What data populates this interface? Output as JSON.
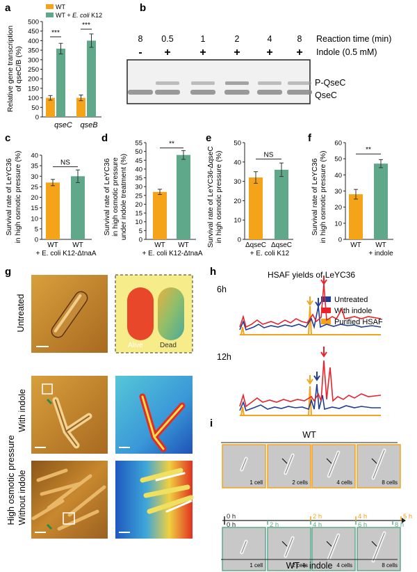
{
  "colors": {
    "orange": "#f5a318",
    "green": "#5fa98a",
    "red": "#e8222a",
    "blue": "#1f3d93",
    "yellow_bg": "#f6ec8a"
  },
  "panel_a": {
    "label": "a",
    "ylabel_1": "Relative gene transcription",
    "ylabel_2": "of qseC/B (%)",
    "legend_wt": "WT",
    "legend_wt_ecoli_prefix": "WT + ",
    "legend_wt_ecoli_italic": "E. coli",
    "legend_wt_ecoli_suffix": " K12",
    "yticks": [
      "0",
      "50",
      "100",
      "150",
      "200",
      "250",
      "300",
      "350",
      "400",
      "450",
      "500"
    ],
    "sig1": "***",
    "sig2": "***"
  },
  "panel_b": {
    "label": "b",
    "times": [
      "8",
      "0.5",
      "1",
      "2",
      "4",
      "8"
    ],
    "indole": [
      "-",
      "+",
      "+",
      "+",
      "+",
      "+"
    ],
    "reaction_label": "Reaction time (min)",
    "indole_label": "Indole (0.5 mM)",
    "band_upper": "P-QseC",
    "band_lower": "QseC"
  },
  "panel_c": {
    "label": "c",
    "ylabel_1": "Survival rate of LeYC36",
    "ylabel_2": "in high osmotic pressure (%)",
    "yticks": [
      "0",
      "5",
      "10",
      "15",
      "20",
      "25",
      "30",
      "35",
      "40"
    ],
    "xlabel1": "WT",
    "xlabel2": "WT",
    "xsub": "+ E. coli K12-ΔtnaA",
    "sig": "NS"
  },
  "panel_d": {
    "label": "d",
    "ylabel_1": "Survival rate of LeYC36",
    "ylabel_2": "in high osmotic pressure",
    "ylabel_3": "under indole treatment (%)",
    "yticks": [
      "0",
      "5",
      "10",
      "15",
      "20",
      "25",
      "30",
      "35",
      "40",
      "45",
      "50",
      "55"
    ],
    "xlabel1": "WT",
    "xlabel2": "WT",
    "xsub": "+ E. coli K12-ΔtnaA",
    "sig": "**"
  },
  "panel_e": {
    "label": "e",
    "ylabel_1": "Survival rate of LeYC36-ΔqseC",
    "ylabel_2": "in high osmotic pressure (%)",
    "yticks": [
      "0",
      "10",
      "20",
      "30",
      "40",
      "50"
    ],
    "xlabel1": "ΔqseC",
    "xlabel2": "ΔqseC",
    "xsub": "+ E. coli K12",
    "sig": "NS"
  },
  "panel_f": {
    "label": "f",
    "ylabel_1": "Survival rate of LeYC36",
    "ylabel_2": "in high osmotic pressure (%)",
    "yticks": [
      "0",
      "10",
      "20",
      "30",
      "40",
      "50",
      "60"
    ],
    "xlabel1": "WT",
    "xlabel2": "WT",
    "xsub": "+ indole",
    "sig": "**"
  },
  "panel_g": {
    "label": "g",
    "untreated": "Untreated",
    "with_indole": "With indole",
    "without_indole": "Without indole",
    "high_osmotic": "High osmotic pressure",
    "alive": "Alive",
    "dead": "Dead"
  },
  "panel_h": {
    "label": "h",
    "title": "HSAF yields of LeYC36",
    "t1": "6h",
    "t2": "12h",
    "legend_untreated": "Untreated",
    "legend_indole": "With indole",
    "legend_purified": "Purified HSAF"
  },
  "panel_i": {
    "label": "i",
    "wt": "WT",
    "wt_indole": "WT + indole",
    "top_cells": [
      "1 cell",
      "2 cells",
      "4 cells",
      "8 cells"
    ],
    "bottom_cells": [
      "1 cell",
      "2 cells",
      "4 cells",
      "8 cells"
    ],
    "timeline_top": [
      "0 h",
      "2 h",
      "4 h",
      "5 h"
    ],
    "timeline_bottom": [
      "0 h",
      "2 h",
      "4 h",
      "6 h",
      "8 h"
    ]
  },
  "chart_data": [
    {
      "type": "bar",
      "panel": "a",
      "title": "",
      "xlabel": "",
      "ylabel": "Relative gene transcription of qseC/B (%)",
      "categories": [
        "qseC",
        "qseB"
      ],
      "series": [
        {
          "name": "WT",
          "values": [
            100,
            100
          ],
          "errors": [
            12,
            15
          ]
        },
        {
          "name": "WT + E. coli K12",
          "values": [
            358,
            400
          ],
          "errors": [
            28,
            35
          ]
        }
      ],
      "ylim": [
        0,
        500
      ]
    },
    {
      "type": "bar",
      "panel": "c",
      "categories": [
        "WT",
        "WT + E. coli K12-ΔtnaA"
      ],
      "values": [
        27,
        30
      ],
      "errors": [
        1.5,
        3
      ],
      "ylim": [
        0,
        40
      ]
    },
    {
      "type": "bar",
      "panel": "d",
      "categories": [
        "WT",
        "WT + E. coli K12-ΔtnaA"
      ],
      "values": [
        27,
        48
      ],
      "errors": [
        1.5,
        2.5
      ],
      "ylim": [
        0,
        55
      ]
    },
    {
      "type": "bar",
      "panel": "e",
      "categories": [
        "ΔqseC",
        "ΔqseC + E. coli K12"
      ],
      "values": [
        32,
        36
      ],
      "errors": [
        3,
        3.5
      ],
      "ylim": [
        0,
        50
      ]
    },
    {
      "type": "bar",
      "panel": "f",
      "categories": [
        "WT",
        "WT + indole"
      ],
      "values": [
        28,
        47
      ],
      "errors": [
        3,
        2.5
      ],
      "ylim": [
        0,
        60
      ]
    }
  ]
}
